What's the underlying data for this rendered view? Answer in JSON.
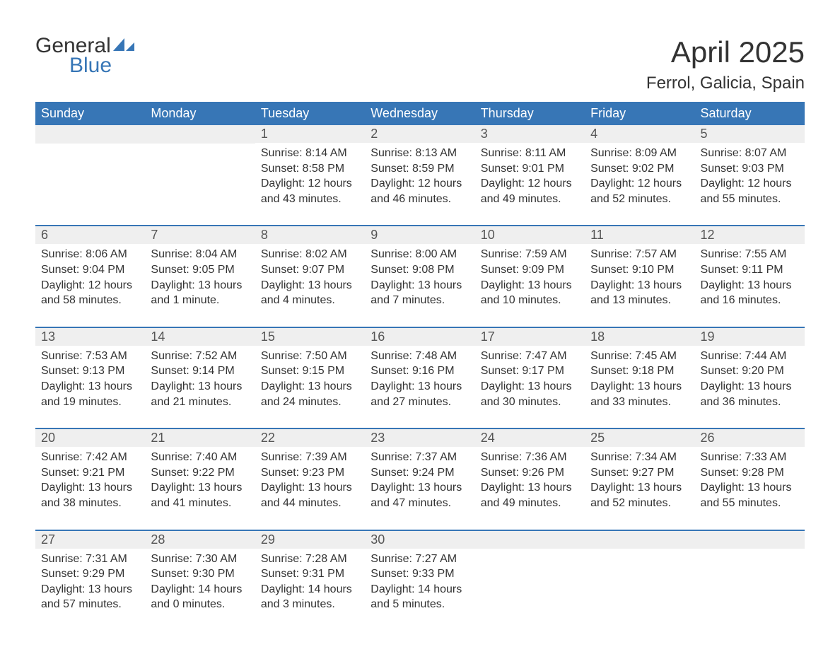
{
  "logo": {
    "word1": "General",
    "word2": "Blue",
    "accent_color": "#3776b6",
    "text_color": "#333333"
  },
  "title": "April 2025",
  "location": "Ferrol, Galicia, Spain",
  "colors": {
    "header_bg": "#3776b6",
    "header_text": "#ffffff",
    "daynum_bg": "#efefef",
    "body_text": "#333333",
    "rule": "#3776b6",
    "page_bg": "#ffffff"
  },
  "typography": {
    "month_title_fontsize": 42,
    "location_fontsize": 24,
    "header_fontsize": 18,
    "daynum_fontsize": 18,
    "body_fontsize": 16
  },
  "weekdays": [
    "Sunday",
    "Monday",
    "Tuesday",
    "Wednesday",
    "Thursday",
    "Friday",
    "Saturday"
  ],
  "weeks": [
    [
      null,
      null,
      {
        "n": "1",
        "sunrise": "8:14 AM",
        "sunset": "8:58 PM",
        "daylight": "12 hours and 43 minutes."
      },
      {
        "n": "2",
        "sunrise": "8:13 AM",
        "sunset": "8:59 PM",
        "daylight": "12 hours and 46 minutes."
      },
      {
        "n": "3",
        "sunrise": "8:11 AM",
        "sunset": "9:01 PM",
        "daylight": "12 hours and 49 minutes."
      },
      {
        "n": "4",
        "sunrise": "8:09 AM",
        "sunset": "9:02 PM",
        "daylight": "12 hours and 52 minutes."
      },
      {
        "n": "5",
        "sunrise": "8:07 AM",
        "sunset": "9:03 PM",
        "daylight": "12 hours and 55 minutes."
      }
    ],
    [
      {
        "n": "6",
        "sunrise": "8:06 AM",
        "sunset": "9:04 PM",
        "daylight": "12 hours and 58 minutes."
      },
      {
        "n": "7",
        "sunrise": "8:04 AM",
        "sunset": "9:05 PM",
        "daylight": "13 hours and 1 minute."
      },
      {
        "n": "8",
        "sunrise": "8:02 AM",
        "sunset": "9:07 PM",
        "daylight": "13 hours and 4 minutes."
      },
      {
        "n": "9",
        "sunrise": "8:00 AM",
        "sunset": "9:08 PM",
        "daylight": "13 hours and 7 minutes."
      },
      {
        "n": "10",
        "sunrise": "7:59 AM",
        "sunset": "9:09 PM",
        "daylight": "13 hours and 10 minutes."
      },
      {
        "n": "11",
        "sunrise": "7:57 AM",
        "sunset": "9:10 PM",
        "daylight": "13 hours and 13 minutes."
      },
      {
        "n": "12",
        "sunrise": "7:55 AM",
        "sunset": "9:11 PM",
        "daylight": "13 hours and 16 minutes."
      }
    ],
    [
      {
        "n": "13",
        "sunrise": "7:53 AM",
        "sunset": "9:13 PM",
        "daylight": "13 hours and 19 minutes."
      },
      {
        "n": "14",
        "sunrise": "7:52 AM",
        "sunset": "9:14 PM",
        "daylight": "13 hours and 21 minutes."
      },
      {
        "n": "15",
        "sunrise": "7:50 AM",
        "sunset": "9:15 PM",
        "daylight": "13 hours and 24 minutes."
      },
      {
        "n": "16",
        "sunrise": "7:48 AM",
        "sunset": "9:16 PM",
        "daylight": "13 hours and 27 minutes."
      },
      {
        "n": "17",
        "sunrise": "7:47 AM",
        "sunset": "9:17 PM",
        "daylight": "13 hours and 30 minutes."
      },
      {
        "n": "18",
        "sunrise": "7:45 AM",
        "sunset": "9:18 PM",
        "daylight": "13 hours and 33 minutes."
      },
      {
        "n": "19",
        "sunrise": "7:44 AM",
        "sunset": "9:20 PM",
        "daylight": "13 hours and 36 minutes."
      }
    ],
    [
      {
        "n": "20",
        "sunrise": "7:42 AM",
        "sunset": "9:21 PM",
        "daylight": "13 hours and 38 minutes."
      },
      {
        "n": "21",
        "sunrise": "7:40 AM",
        "sunset": "9:22 PM",
        "daylight": "13 hours and 41 minutes."
      },
      {
        "n": "22",
        "sunrise": "7:39 AM",
        "sunset": "9:23 PM",
        "daylight": "13 hours and 44 minutes."
      },
      {
        "n": "23",
        "sunrise": "7:37 AM",
        "sunset": "9:24 PM",
        "daylight": "13 hours and 47 minutes."
      },
      {
        "n": "24",
        "sunrise": "7:36 AM",
        "sunset": "9:26 PM",
        "daylight": "13 hours and 49 minutes."
      },
      {
        "n": "25",
        "sunrise": "7:34 AM",
        "sunset": "9:27 PM",
        "daylight": "13 hours and 52 minutes."
      },
      {
        "n": "26",
        "sunrise": "7:33 AM",
        "sunset": "9:28 PM",
        "daylight": "13 hours and 55 minutes."
      }
    ],
    [
      {
        "n": "27",
        "sunrise": "7:31 AM",
        "sunset": "9:29 PM",
        "daylight": "13 hours and 57 minutes."
      },
      {
        "n": "28",
        "sunrise": "7:30 AM",
        "sunset": "9:30 PM",
        "daylight": "14 hours and 0 minutes."
      },
      {
        "n": "29",
        "sunrise": "7:28 AM",
        "sunset": "9:31 PM",
        "daylight": "14 hours and 3 minutes."
      },
      {
        "n": "30",
        "sunrise": "7:27 AM",
        "sunset": "9:33 PM",
        "daylight": "14 hours and 5 minutes."
      },
      null,
      null,
      null
    ]
  ],
  "labels": {
    "sunrise": "Sunrise:",
    "sunset": "Sunset:",
    "daylight": "Daylight:"
  }
}
